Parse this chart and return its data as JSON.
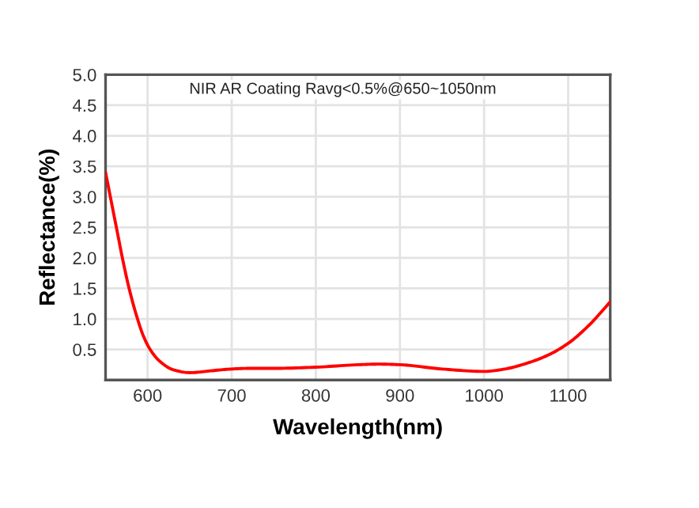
{
  "chart_data": {
    "type": "line",
    "title": "NIR AR Coating Ravg<0.5%@650~1050nm",
    "xlabel": "Wavelength(nm)",
    "ylabel": "Reflectance(%)",
    "x": [
      550,
      555,
      560,
      565,
      570,
      578,
      588,
      595,
      603,
      615,
      630,
      650,
      675,
      700,
      720,
      750,
      800,
      850,
      875,
      900,
      950,
      1000,
      1025,
      1050,
      1075,
      1100,
      1125,
      1150
    ],
    "series": [
      {
        "color": "#ff0000",
        "values": [
          3.4,
          3.05,
          2.7,
          2.35,
          2.0,
          1.5,
          1.0,
          0.72,
          0.5,
          0.3,
          0.17,
          0.12,
          0.15,
          0.18,
          0.19,
          0.19,
          0.21,
          0.25,
          0.26,
          0.25,
          0.18,
          0.14,
          0.18,
          0.27,
          0.4,
          0.6,
          0.9,
          1.28
        ]
      }
    ],
    "xlim": [
      550,
      1150
    ],
    "ylim": [
      0,
      5
    ],
    "xticks": [
      600,
      700,
      800,
      900,
      1000,
      1100
    ],
    "yticks": [
      {
        "value": 0.5,
        "label": "0.5"
      },
      {
        "value": 1,
        "label": "1.0"
      },
      {
        "value": 1.5,
        "label": "1.5"
      },
      {
        "value": 2,
        "label": "2.0"
      },
      {
        "value": 2.5,
        "label": "2.5"
      },
      {
        "value": 3,
        "label": "3.0"
      },
      {
        "value": 3.5,
        "label": "3.5"
      },
      {
        "value": 4,
        "label": "4.0"
      },
      {
        "value": 4.5,
        "label": "4.5"
      },
      {
        "value": 5,
        "label": "5.0"
      }
    ],
    "grid": true,
    "marker": "none",
    "line_style": "solid"
  }
}
